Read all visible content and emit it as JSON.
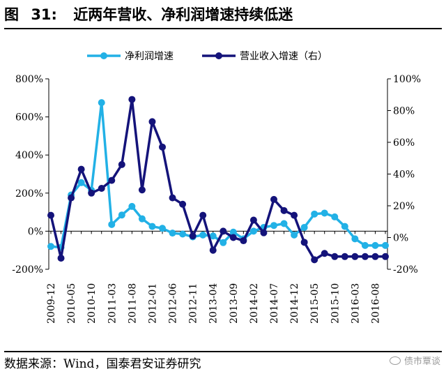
{
  "figure": {
    "label": "图",
    "number": "31:",
    "title": "近两年营收、净利润增速持续低迷"
  },
  "source": "数据来源：Wind，国泰君安证券研究",
  "watermark": "债市覃谈",
  "colors": {
    "net_profit": "#22B1E6",
    "revenue": "#14137A",
    "axis": "#000000"
  },
  "chart_data": {
    "type": "line",
    "x": [
      "2009-12",
      "2010-03",
      "2010-05",
      "2010-08",
      "2010-10",
      "2010-12",
      "2011-03",
      "2011-05",
      "2011-08",
      "2011-10",
      "2012-01",
      "2012-03",
      "2012-06",
      "2012-08",
      "2012-11",
      "2013-01",
      "2013-04",
      "2013-06",
      "2013-09",
      "2013-11",
      "2014-02",
      "2014-04",
      "2014-07",
      "2014-09",
      "2014-12",
      "2015-02",
      "2015-05",
      "2015-07",
      "2015-10",
      "2015-12",
      "2016-03",
      "2016-05",
      "2016-08",
      "2016-10"
    ],
    "x_tick_labels": [
      "2009-12",
      "2010-05",
      "2010-10",
      "2011-03",
      "2011-08",
      "2012-01",
      "2012-06",
      "2012-11",
      "2013-04",
      "2013-09",
      "2014-02",
      "2014-07",
      "2014-12",
      "2015-05",
      "2015-10",
      "2016-03",
      "2016-08"
    ],
    "series": [
      {
        "name": "净利润增速",
        "axis": "left",
        "values": [
          -80,
          -85,
          190,
          255,
          215,
          675,
          35,
          85,
          130,
          65,
          25,
          15,
          -10,
          -15,
          -30,
          -20,
          -25,
          -60,
          -5,
          -40,
          0,
          20,
          30,
          40,
          -20,
          20,
          90,
          95,
          75,
          25,
          -40,
          -75,
          -75,
          -75
        ]
      },
      {
        "name": "营业收入增速（右）",
        "axis": "right",
        "values": [
          14,
          -13,
          25,
          43,
          28,
          31,
          36,
          46,
          87,
          30,
          73,
          57,
          25,
          21,
          1,
          14,
          -8,
          4,
          0,
          -2,
          11,
          3,
          24,
          17,
          14,
          -3,
          -14,
          -10,
          -12,
          -12,
          -12,
          -12,
          -12,
          -12
        ]
      }
    ],
    "y_left": {
      "min": -200,
      "max": 800,
      "step": 200,
      "tick_labels": [
        "-200%",
        "0%",
        "200%",
        "400%",
        "600%",
        "800%"
      ]
    },
    "y_right": {
      "min": -20,
      "max": 100,
      "step": 20,
      "tick_labels": [
        "-20%",
        "0%",
        "20%",
        "40%",
        "60%",
        "80%",
        "100%"
      ]
    },
    "grid": false,
    "legend_position": "top"
  }
}
